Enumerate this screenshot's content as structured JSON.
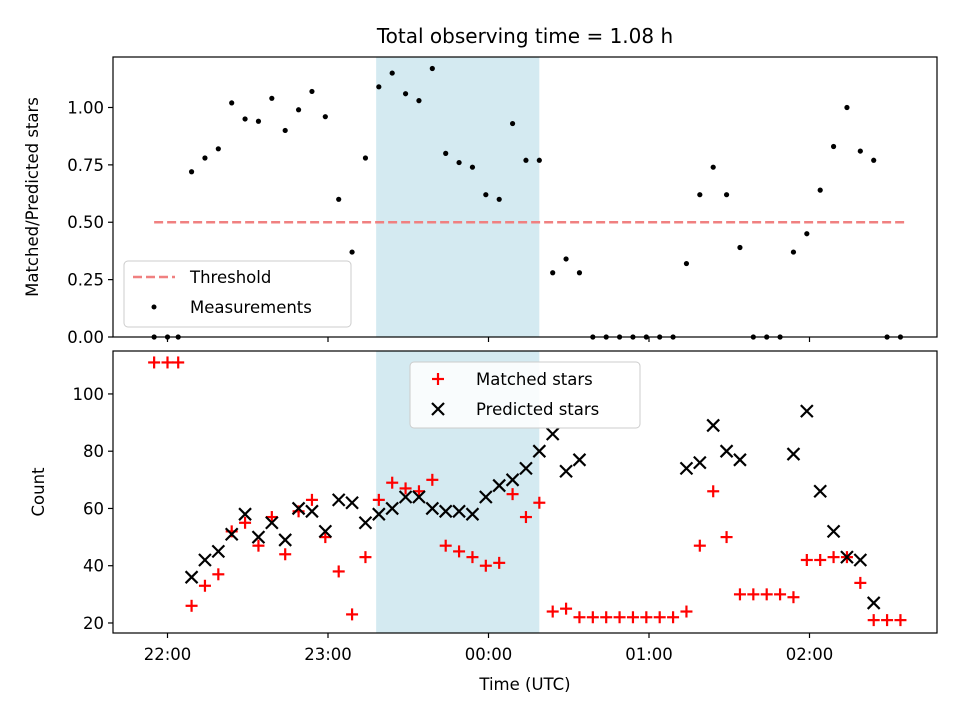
{
  "chart_data": {
    "type": "scatter",
    "title": "Total observing time = 1.08 h",
    "xlabel": "Time (UTC)",
    "x_tick_labels": [
      "22:00",
      "23:00",
      "00:00",
      "01:00",
      "02:00"
    ],
    "shaded_region": {
      "start": "23:18",
      "end": "00:19",
      "color": "#d4eaf1"
    },
    "colors": {
      "threshold": "#f08080",
      "measurements": "#000000",
      "matched": "#ff0000",
      "predicted": "#000000",
      "shade": "#d4eaf1"
    },
    "top_panel": {
      "ylabel": "Matched/Predicted stars",
      "ylim": [
        0,
        1.22
      ],
      "y_tick_labels": [
        "0.00",
        "0.25",
        "0.50",
        "0.75",
        "1.00"
      ],
      "legend": {
        "threshold": "Threshold",
        "measurements": "Measurements"
      },
      "threshold": {
        "value": 0.5,
        "x_start": "21:55",
        "x_end": "02:36"
      },
      "series": [
        {
          "name": "Measurements",
          "points": [
            [
              "21:55",
              0
            ],
            [
              "22:00",
              0
            ],
            [
              "22:04",
              0
            ],
            [
              "22:09",
              0.72
            ],
            [
              "22:14",
              0.78
            ],
            [
              "22:19",
              0.82
            ],
            [
              "22:24",
              1.02
            ],
            [
              "22:29",
              0.95
            ],
            [
              "22:34",
              0.94
            ],
            [
              "22:39",
              1.04
            ],
            [
              "22:44",
              0.9
            ],
            [
              "22:49",
              0.99
            ],
            [
              "22:54",
              1.07
            ],
            [
              "22:59",
              0.96
            ],
            [
              "23:04",
              0.6
            ],
            [
              "23:09",
              0.37
            ],
            [
              "23:14",
              0.78
            ],
            [
              "23:19",
              1.09
            ],
            [
              "23:24",
              1.15
            ],
            [
              "23:29",
              1.06
            ],
            [
              "23:34",
              1.03
            ],
            [
              "23:39",
              1.17
            ],
            [
              "23:44",
              0.8
            ],
            [
              "23:49",
              0.76
            ],
            [
              "23:54",
              0.74
            ],
            [
              "23:59",
              0.62
            ],
            [
              "00:04",
              0.6
            ],
            [
              "00:09",
              0.93
            ],
            [
              "00:14",
              0.77
            ],
            [
              "00:19",
              0.77
            ],
            [
              "00:24",
              0.28
            ],
            [
              "00:29",
              0.34
            ],
            [
              "00:34",
              0.28
            ],
            [
              "00:39",
              0
            ],
            [
              "00:44",
              0
            ],
            [
              "00:49",
              0
            ],
            [
              "00:54",
              0
            ],
            [
              "00:59",
              0
            ],
            [
              "01:04",
              0
            ],
            [
              "01:09",
              0
            ],
            [
              "01:14",
              0.32
            ],
            [
              "01:19",
              0.62
            ],
            [
              "01:24",
              0.74
            ],
            [
              "01:29",
              0.62
            ],
            [
              "01:34",
              0.39
            ],
            [
              "01:39",
              0
            ],
            [
              "01:44",
              0
            ],
            [
              "01:49",
              0
            ],
            [
              "01:54",
              0.37
            ],
            [
              "01:59",
              0.45
            ],
            [
              "02:04",
              0.64
            ],
            [
              "02:09",
              0.83
            ],
            [
              "02:14",
              1.0
            ],
            [
              "02:19",
              0.81
            ],
            [
              "02:24",
              0.77
            ],
            [
              "02:29",
              0
            ],
            [
              "02:34",
              0
            ]
          ]
        }
      ]
    },
    "bottom_panel": {
      "ylabel": "Count",
      "ylim": [
        16.5,
        115
      ],
      "y_tick_labels": [
        "20",
        "40",
        "60",
        "80",
        "100"
      ],
      "legend": {
        "matched": "Matched stars",
        "predicted": "Predicted stars"
      },
      "series": [
        {
          "name": "Matched stars",
          "points": [
            [
              "21:55",
              111
            ],
            [
              "22:00",
              111
            ],
            [
              "22:04",
              111
            ],
            [
              "22:09",
              26
            ],
            [
              "22:14",
              33
            ],
            [
              "22:19",
              37
            ],
            [
              "22:24",
              52
            ],
            [
              "22:29",
              55
            ],
            [
              "22:34",
              47
            ],
            [
              "22:39",
              57
            ],
            [
              "22:44",
              44
            ],
            [
              "22:49",
              59
            ],
            [
              "22:54",
              63
            ],
            [
              "22:59",
              50
            ],
            [
              "23:04",
              38
            ],
            [
              "23:09",
              23
            ],
            [
              "23:14",
              43
            ],
            [
              "23:19",
              63
            ],
            [
              "23:24",
              69
            ],
            [
              "23:29",
              67
            ],
            [
              "23:34",
              66
            ],
            [
              "23:39",
              70
            ],
            [
              "23:44",
              47
            ],
            [
              "23:49",
              45
            ],
            [
              "23:54",
              43
            ],
            [
              "23:59",
              40
            ],
            [
              "00:04",
              41
            ],
            [
              "00:09",
              65
            ],
            [
              "00:14",
              57
            ],
            [
              "00:19",
              62
            ],
            [
              "00:24",
              24
            ],
            [
              "00:29",
              25
            ],
            [
              "00:34",
              22
            ],
            [
              "00:39",
              22
            ],
            [
              "00:44",
              22
            ],
            [
              "00:49",
              22
            ],
            [
              "00:54",
              22
            ],
            [
              "00:59",
              22
            ],
            [
              "01:04",
              22
            ],
            [
              "01:09",
              22
            ],
            [
              "01:14",
              24
            ],
            [
              "01:19",
              47
            ],
            [
              "01:24",
              66
            ],
            [
              "01:29",
              50
            ],
            [
              "01:34",
              30
            ],
            [
              "01:39",
              30
            ],
            [
              "01:44",
              30
            ],
            [
              "01:49",
              30
            ],
            [
              "01:54",
              29
            ],
            [
              "01:59",
              42
            ],
            [
              "02:04",
              42
            ],
            [
              "02:09",
              43
            ],
            [
              "02:14",
              43
            ],
            [
              "02:19",
              34
            ],
            [
              "02:24",
              21
            ],
            [
              "02:29",
              21
            ],
            [
              "02:34",
              21
            ]
          ]
        },
        {
          "name": "Predicted stars",
          "points": [
            [
              "22:09",
              36
            ],
            [
              "22:14",
              42
            ],
            [
              "22:19",
              45
            ],
            [
              "22:24",
              51
            ],
            [
              "22:29",
              58
            ],
            [
              "22:34",
              50
            ],
            [
              "22:39",
              55
            ],
            [
              "22:44",
              49
            ],
            [
              "22:49",
              60
            ],
            [
              "22:54",
              59
            ],
            [
              "22:59",
              52
            ],
            [
              "23:04",
              63
            ],
            [
              "23:09",
              62
            ],
            [
              "23:14",
              55
            ],
            [
              "23:19",
              58
            ],
            [
              "23:24",
              60
            ],
            [
              "23:29",
              64
            ],
            [
              "23:34",
              64
            ],
            [
              "23:39",
              60
            ],
            [
              "23:44",
              59
            ],
            [
              "23:49",
              59
            ],
            [
              "23:54",
              58
            ],
            [
              "23:59",
              64
            ],
            [
              "00:04",
              68
            ],
            [
              "00:09",
              70
            ],
            [
              "00:14",
              74
            ],
            [
              "00:19",
              80
            ],
            [
              "00:24",
              86
            ],
            [
              "00:29",
              73
            ],
            [
              "00:34",
              77
            ],
            [
              "01:14",
              74
            ],
            [
              "01:19",
              76
            ],
            [
              "01:24",
              89
            ],
            [
              "01:29",
              80
            ],
            [
              "01:34",
              77
            ],
            [
              "01:54",
              79
            ],
            [
              "01:59",
              94
            ],
            [
              "02:04",
              66
            ],
            [
              "02:09",
              52
            ],
            [
              "02:14",
              43
            ],
            [
              "02:19",
              42
            ],
            [
              "02:24",
              27
            ]
          ]
        }
      ]
    }
  }
}
